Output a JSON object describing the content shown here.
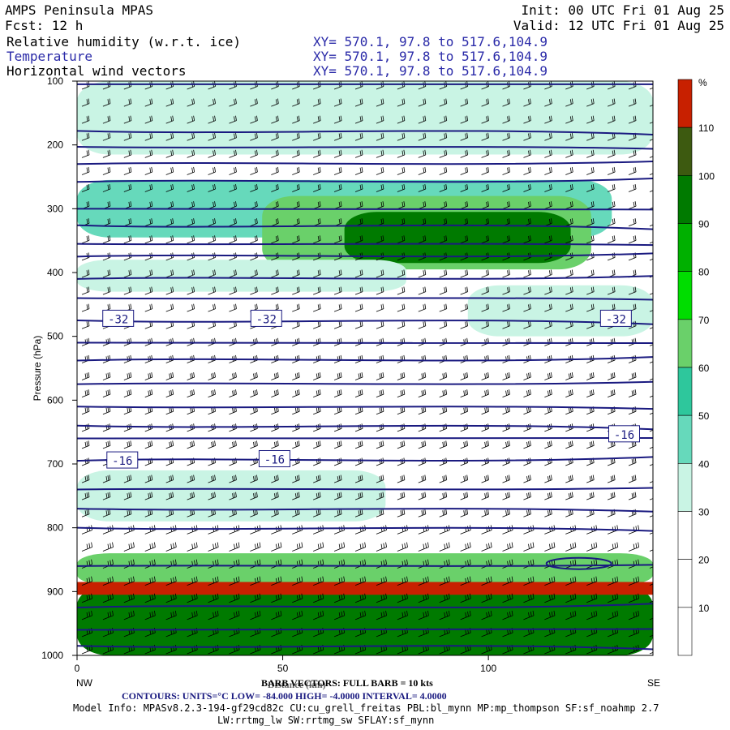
{
  "header": {
    "title": "AMPS Peninsula MPAS",
    "init": "Init: 00 UTC Fri 01 Aug 25",
    "fcst": "Fcst:   12 h",
    "valid": "Valid: 12 UTC Fri 01 Aug 25",
    "field1": "Relative humidity (w.r.t. ice)",
    "field2": "Temperature",
    "field3": "Horizontal wind vectors",
    "xy1": "XY= 570.1, 97.8 to 517.6,104.9",
    "xy2": "XY= 570.1, 97.8 to 517.6,104.9",
    "xy3": "XY= 570.1, 97.8 to 517.6,104.9"
  },
  "colors": {
    "rh_10": "#ffffff",
    "rh_20": "#ffffff",
    "rh_30": "#ffffff",
    "rh_40": "#c9f4e4",
    "rh_50": "#66d9bb",
    "rh_60": "#2ec79c",
    "rh_70": "#6ad06a",
    "rh_80": "#00dd00",
    "rh_90": "#00b000",
    "rh_100": "#007a00",
    "rh_110": "#3d5a10",
    "rh_top": "#c82000",
    "contour": "#1a1a80"
  },
  "chart_data": {
    "type": "heatmap",
    "title": "Relative humidity (w.r.t. ice)",
    "xlabel": "Distance (km)",
    "ylabel": "Pressure (hPa)",
    "x_ticks": [
      "0",
      "50",
      "100"
    ],
    "xlim": [
      0,
      140
    ],
    "y_ticks": [
      "100",
      "200",
      "300",
      "400",
      "500",
      "600",
      "700",
      "800",
      "900",
      "1000"
    ],
    "ylim": [
      100,
      1000
    ],
    "end_labels": {
      "left": "NW",
      "right": "SE"
    },
    "colorbar": {
      "unit": "%",
      "labels": [
        "10",
        "20",
        "30",
        "40",
        "50",
        "60",
        "70",
        "80",
        "90",
        "100",
        "110"
      ]
    },
    "temperature_labels": [
      {
        "text": "-32",
        "x": 10,
        "p": 473
      },
      {
        "text": "-32",
        "x": 46,
        "p": 473
      },
      {
        "text": "-32",
        "x": 131,
        "p": 473
      },
      {
        "text": "-16",
        "x": 11,
        "p": 695
      },
      {
        "text": "-16",
        "x": 48,
        "p": 693
      },
      {
        "text": "-16",
        "x": 133,
        "p": 654
      }
    ],
    "rh_regions": [
      {
        "rh": 50,
        "x": [
          0,
          140
        ],
        "p": [
          110,
          170
        ]
      },
      {
        "rh": 40,
        "x": [
          0,
          140
        ],
        "p": [
          100,
          215
        ]
      },
      {
        "rh": 50,
        "x": [
          0,
          130
        ],
        "p": [
          255,
          345
        ]
      },
      {
        "rh": 70,
        "x": [
          45,
          125
        ],
        "p": [
          280,
          395
        ]
      },
      {
        "rh": 100,
        "x": [
          65,
          120
        ],
        "p": [
          305,
          385
        ]
      },
      {
        "rh": 40,
        "x": [
          0,
          80
        ],
        "p": [
          380,
          430
        ]
      },
      {
        "rh": 40,
        "x": [
          95,
          140
        ],
        "p": [
          420,
          500
        ]
      },
      {
        "rh": 40,
        "x": [
          0,
          75
        ],
        "p": [
          710,
          790
        ]
      },
      {
        "rh": 70,
        "x": [
          0,
          140
        ],
        "p": [
          840,
          890
        ]
      },
      {
        "rh": 100,
        "x": [
          0,
          140
        ],
        "p": [
          890,
          1000
        ]
      },
      {
        "rh": 110,
        "x": [
          0,
          140
        ],
        "p": [
          885,
          905
        ]
      }
    ]
  },
  "footer": {
    "barb": "BARB VECTORS: FULL BARB = 10 kts",
    "distance_overlay": "Distance (km)",
    "contours": "CONTOURS:  UNITS=°C  LOW= -84.000      HIGH= -4.0000      INTERVAL=    4.0000",
    "model1": "Model Info: MPASv8.2.3-194-gf29cd82c CU:cu_grell_freitas PBL:bl_mynn MP:mp_thompson SF:sf_noahmp 2.7",
    "model2": "LW:rrtmg_lw SW:rrtmg_sw SFLAY:sf_mynn"
  }
}
